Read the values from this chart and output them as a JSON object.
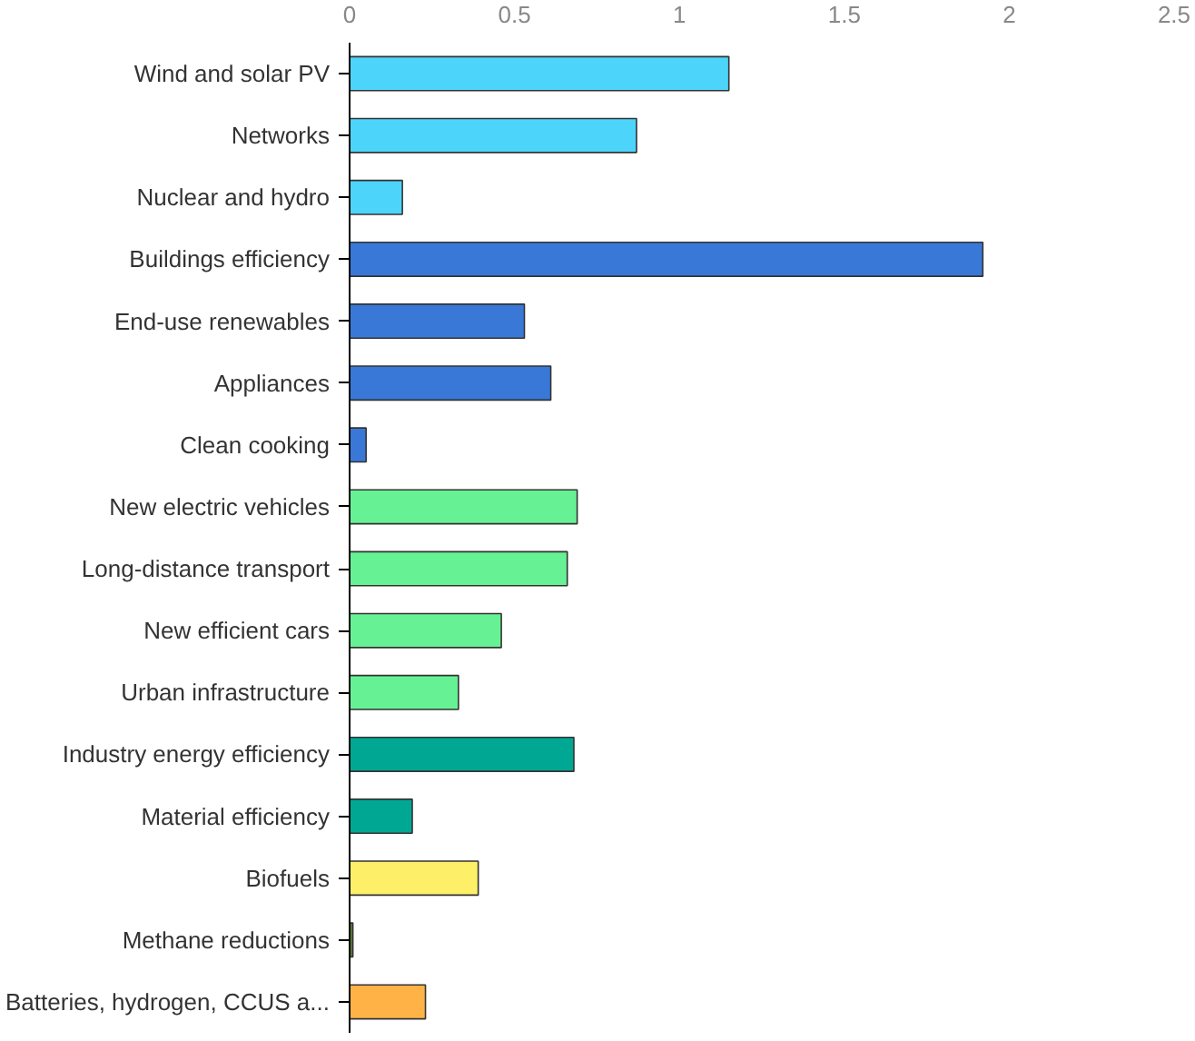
{
  "chart_data": {
    "type": "bar",
    "orientation": "horizontal",
    "categories": [
      "Wind and solar PV",
      "Networks",
      "Nuclear and hydro",
      "Buildings efficiency",
      "End-use renewables",
      "Appliances",
      "Clean cooking",
      "New electric vehicles",
      "Long-distance transport",
      "New efficient cars",
      "Urban infrastructure",
      "Industry energy efficiency",
      "Material efficiency",
      "Biofuels",
      "Methane reductions",
      "Batteries, hydrogen, CCUS a..."
    ],
    "values": [
      1.15,
      0.87,
      0.16,
      1.92,
      0.53,
      0.61,
      0.05,
      0.69,
      0.66,
      0.46,
      0.33,
      0.68,
      0.19,
      0.39,
      0.01,
      0.23
    ],
    "colors": [
      "#4dd4fb",
      "#4dd4fb",
      "#4dd4fb",
      "#3a78d8",
      "#3a78d8",
      "#3a78d8",
      "#3a78d8",
      "#66f294",
      "#66f294",
      "#66f294",
      "#66f294",
      "#00a894",
      "#00a894",
      "#fdf068",
      "#5a7a3a",
      "#ffb347"
    ],
    "xlim": [
      0,
      2.5
    ],
    "xticks": [
      0,
      0.5,
      1,
      1.5,
      2,
      2.5
    ],
    "grid": false
  }
}
